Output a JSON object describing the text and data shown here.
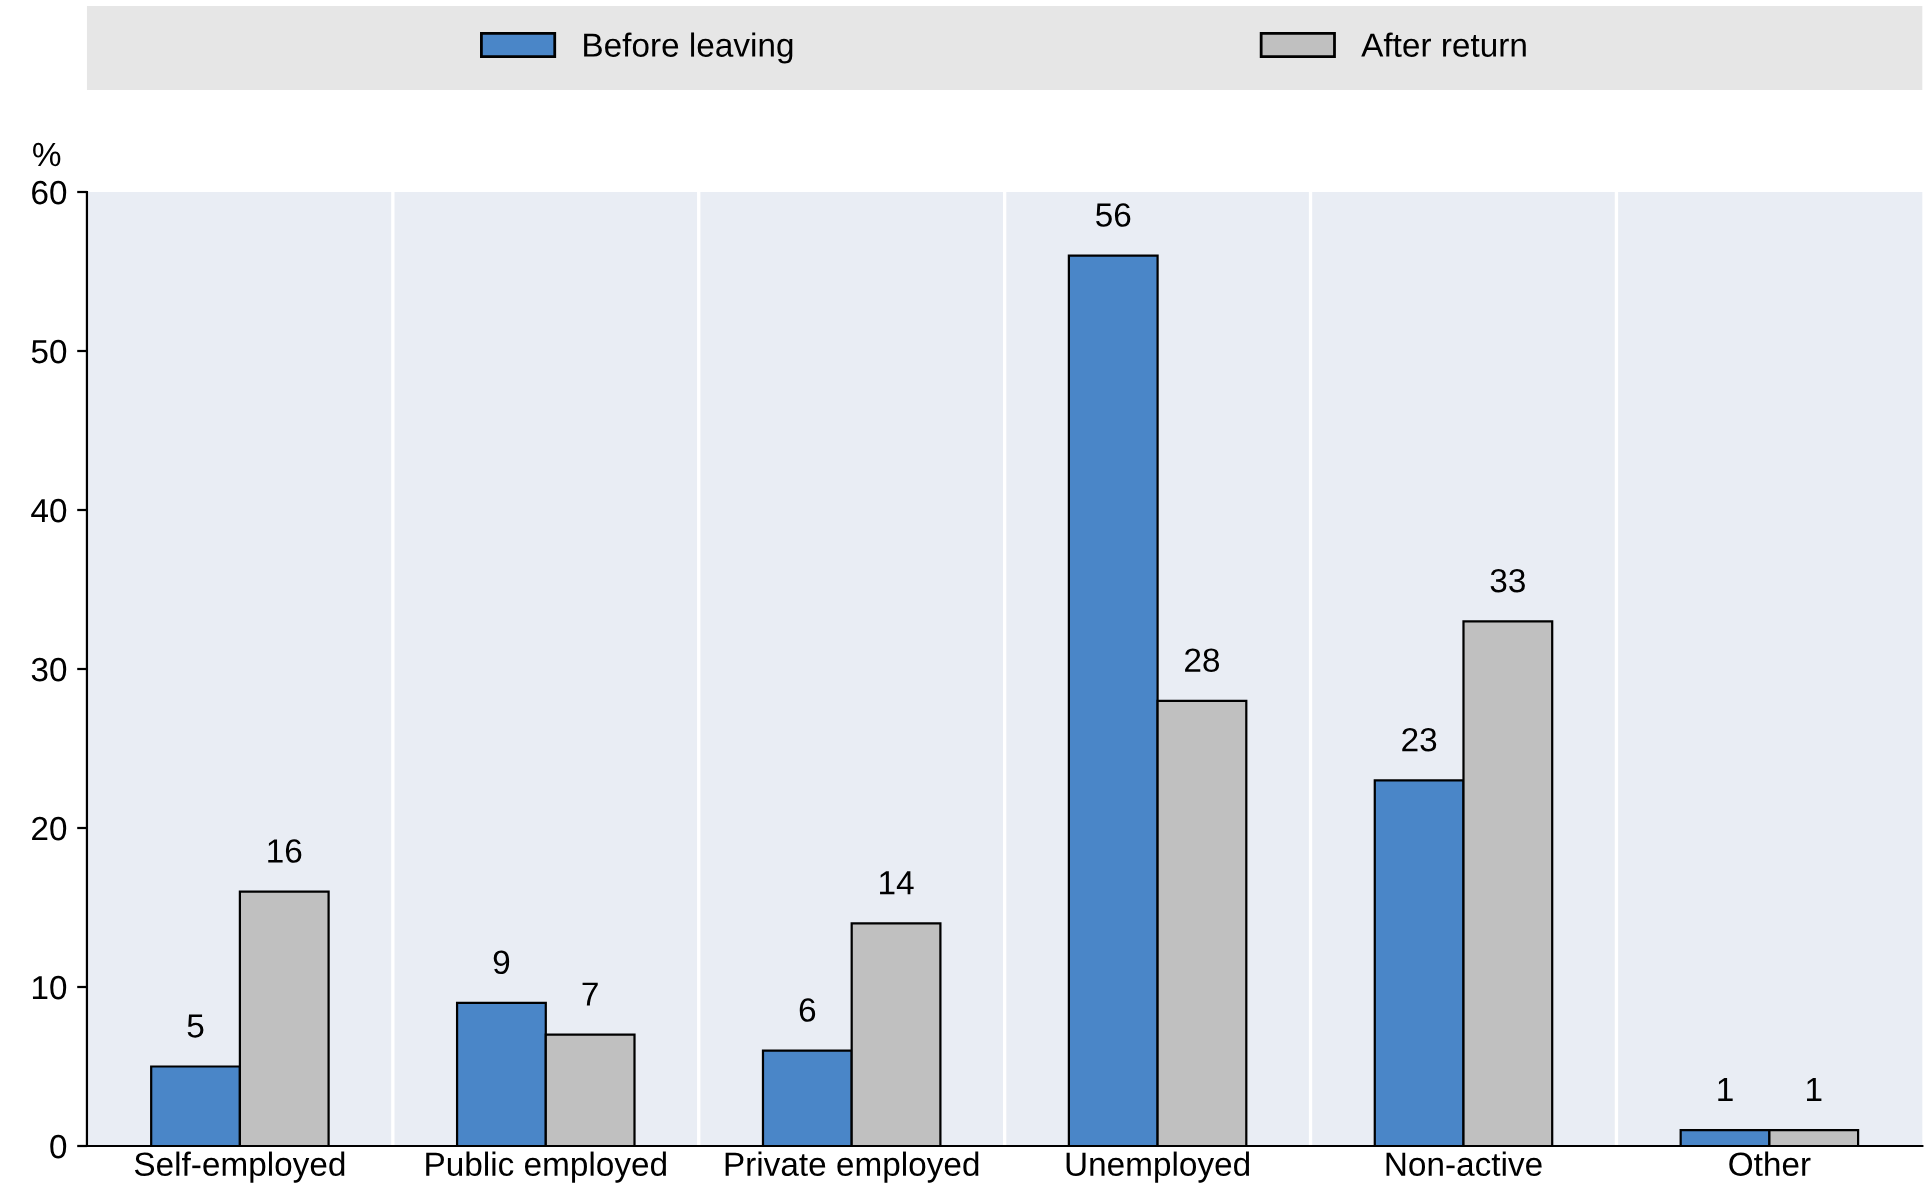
{
  "chart_data": {
    "type": "bar",
    "categories": [
      "Self-employed",
      "Public employed",
      "Private employed",
      "Unemployed",
      "Non-active",
      "Other"
    ],
    "series": [
      {
        "name": "Before leaving",
        "color": "#4a86c8",
        "values": [
          5,
          9,
          6,
          56,
          23,
          1
        ]
      },
      {
        "name": "After return",
        "color": "#c0c0c0",
        "values": [
          16,
          7,
          14,
          28,
          33,
          1
        ]
      }
    ],
    "ylabel": "%",
    "ylim": [
      0,
      60
    ],
    "yticks": [
      0,
      10,
      20,
      30,
      40,
      50,
      60
    ],
    "grid": "x",
    "legend": "top",
    "data_labels": true
  }
}
